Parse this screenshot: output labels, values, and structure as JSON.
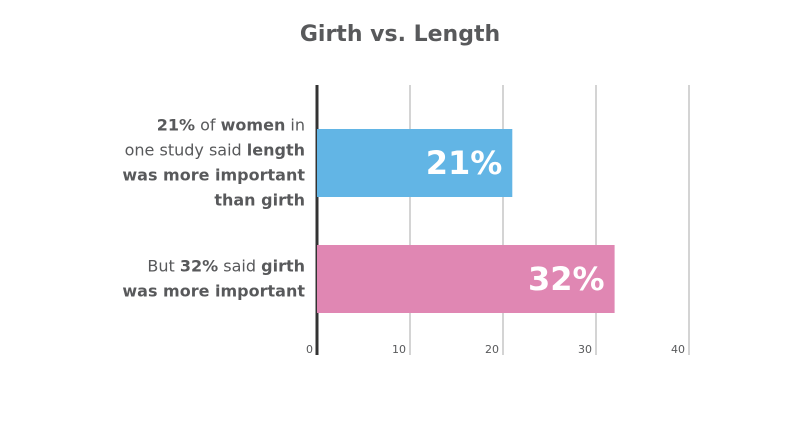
{
  "chart_data": {
    "type": "barh",
    "title": "Girth vs. Length",
    "categories": [
      [
        [
          {
            "text": "21%",
            "bold": true
          },
          {
            "text": " of ",
            "bold": false
          },
          {
            "text": "women",
            "bold": true
          },
          {
            "text": " in",
            "bold": false
          }
        ],
        [
          {
            "text": "one study said ",
            "bold": false
          },
          {
            "text": "length",
            "bold": true
          }
        ],
        [
          {
            "text": "was more important",
            "bold": true
          }
        ],
        [
          {
            "text": "than girth",
            "bold": true
          }
        ]
      ],
      [
        [
          {
            "text": "But ",
            "bold": false
          },
          {
            "text": "32%",
            "bold": true
          },
          {
            "text": " said ",
            "bold": false
          },
          {
            "text": "girth",
            "bold": true
          }
        ],
        [
          {
            "text": "was more important",
            "bold": true
          }
        ]
      ]
    ],
    "values": [
      21,
      32
    ],
    "value_labels": [
      "21%",
      "32%"
    ],
    "colors": [
      "#62b5e5",
      "#e087b3"
    ],
    "xlim": [
      0,
      40
    ],
    "xticks": [
      0,
      10,
      20,
      30,
      40
    ],
    "grid": true
  }
}
